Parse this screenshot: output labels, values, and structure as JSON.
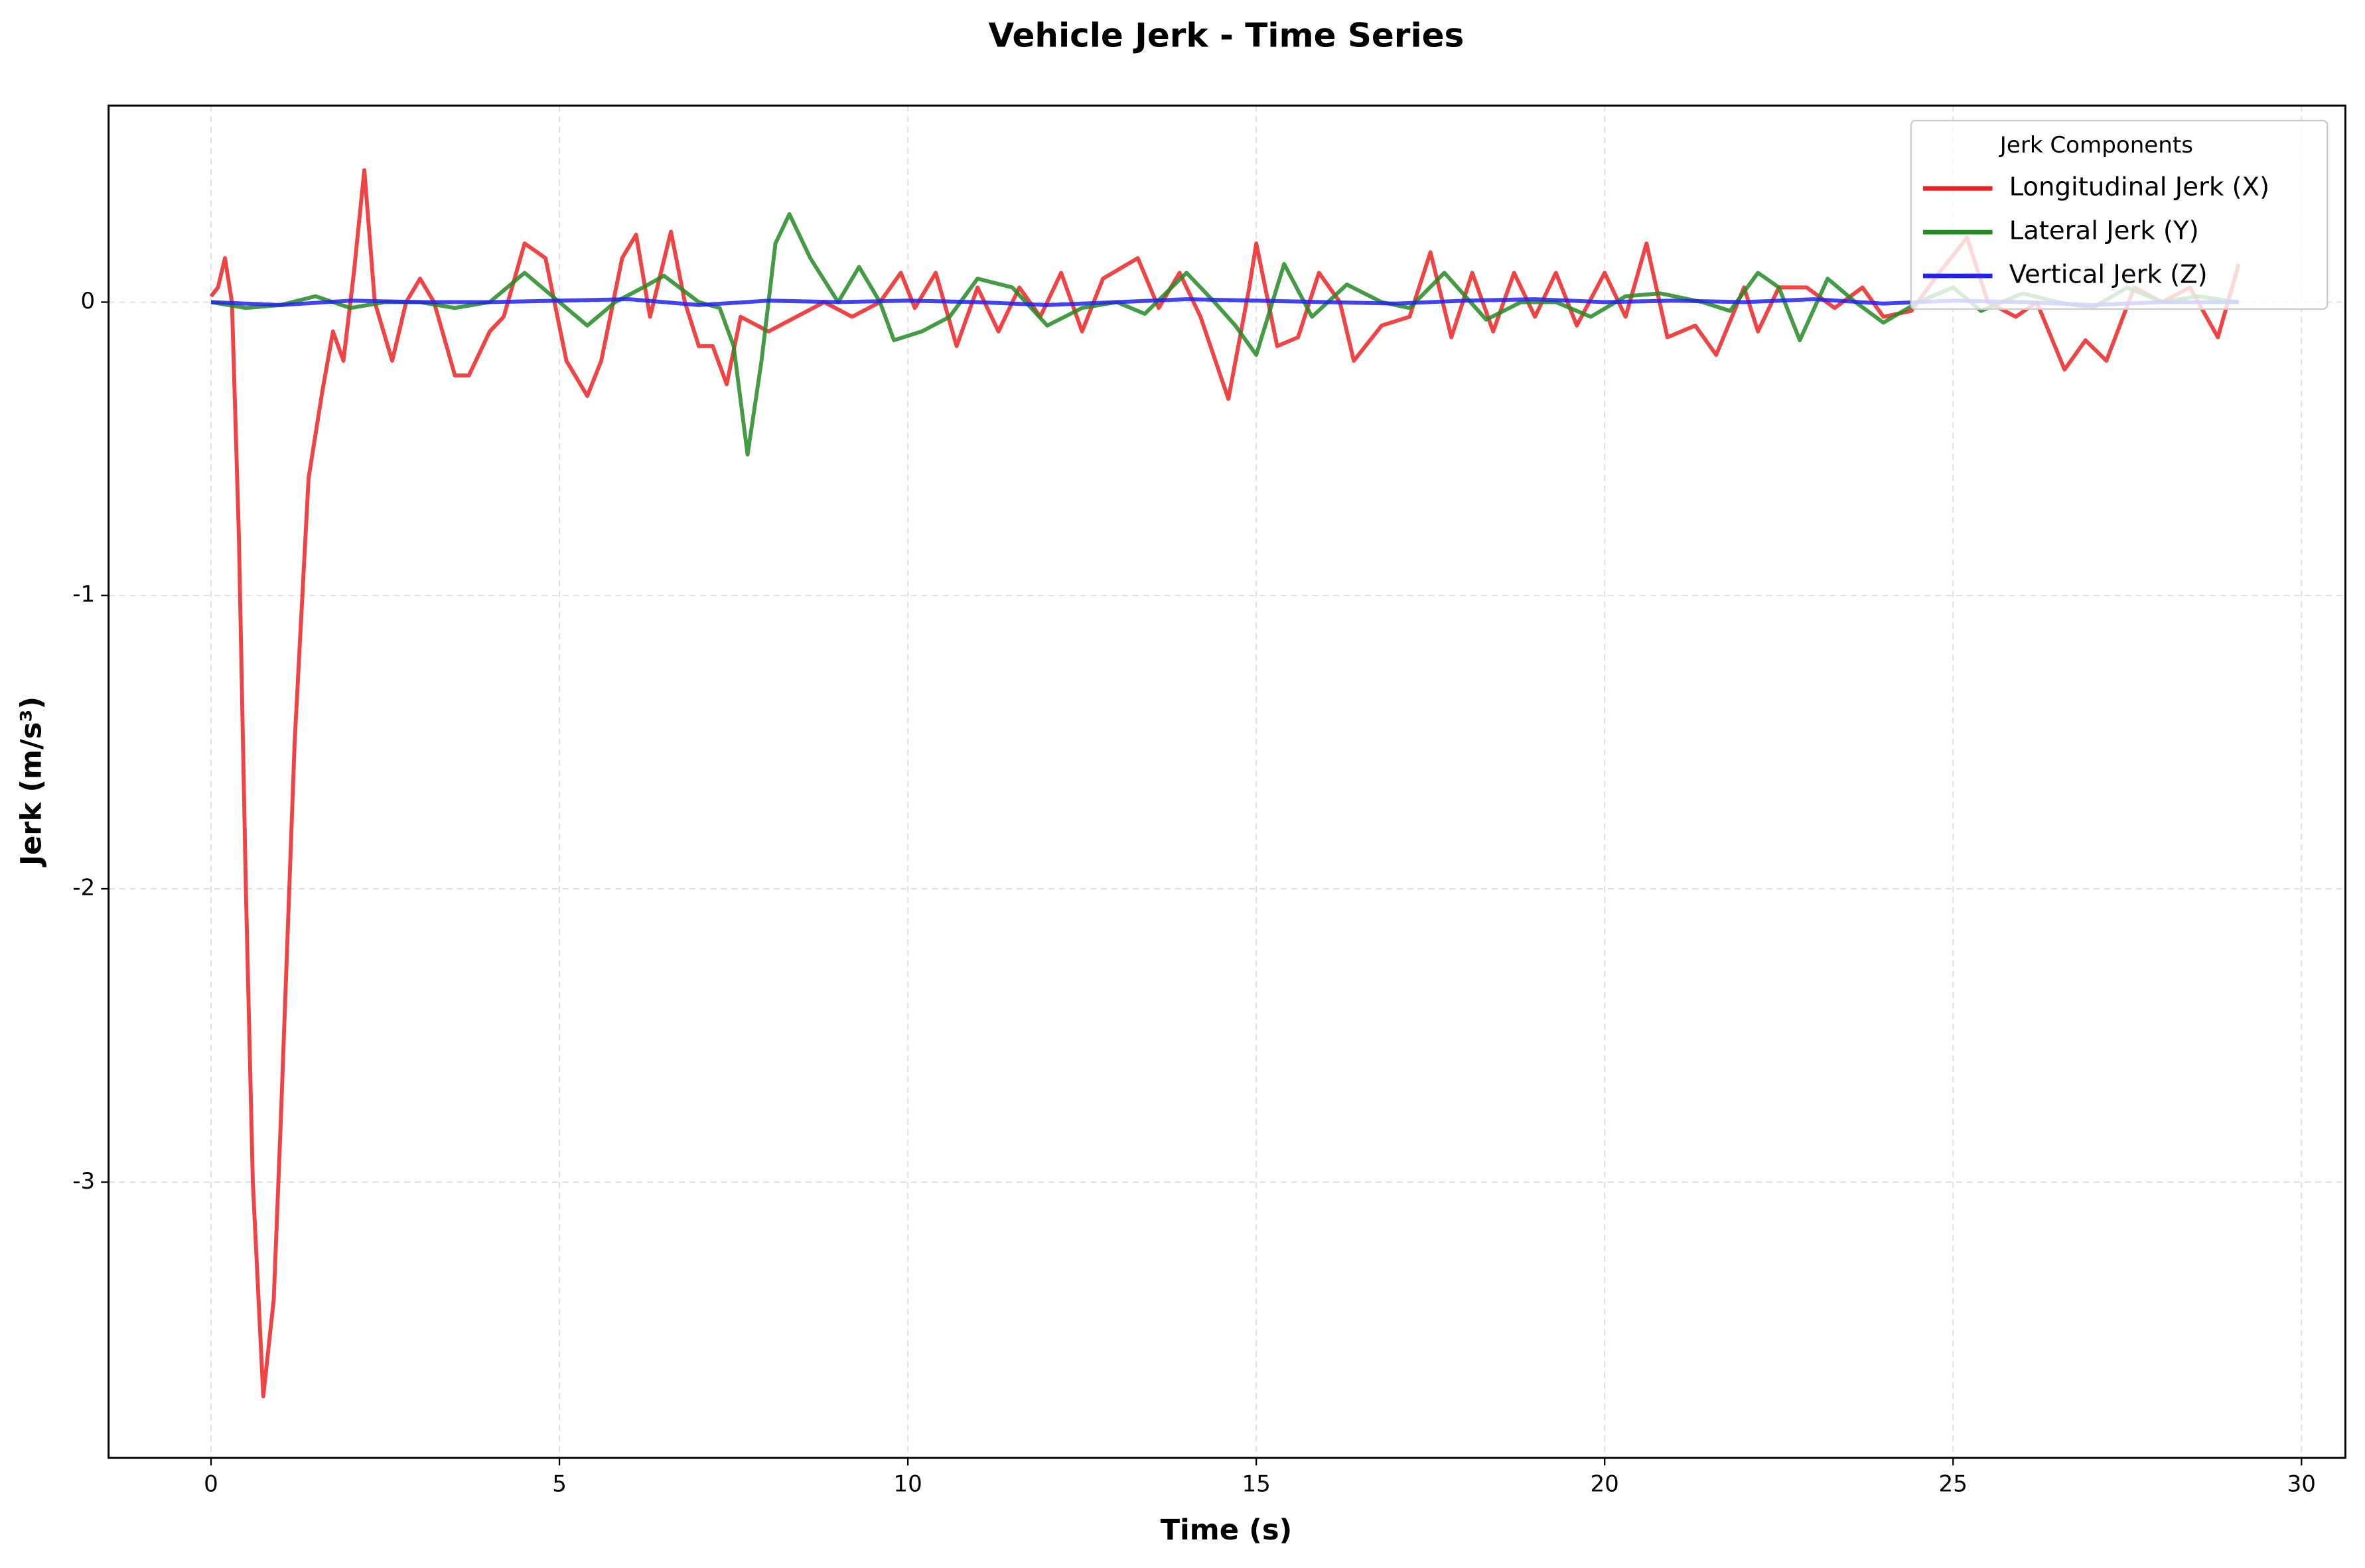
{
  "chart_data": {
    "type": "line",
    "title": "Vehicle Jerk - Time Series",
    "xlabel": "Time (s)",
    "ylabel": "Jerk (m/s³)",
    "legend_title": "Jerk Components",
    "legend": "upper right",
    "grid": true,
    "xlim": [
      -1.47,
      30.63
    ],
    "xticks": [
      0,
      5,
      10,
      15,
      20,
      25,
      30
    ],
    "ylim": [
      -3.94,
      0.67
    ],
    "yticks": [
      -3,
      -2,
      -1,
      0
    ],
    "series": [
      {
        "name": "Longitudinal Jerk (X)",
        "color": "#ee2222",
        "x": [
          0,
          0.1,
          0.2,
          0.3,
          0.4,
          0.5,
          0.6,
          0.75,
          0.9,
          1.0,
          1.2,
          1.4,
          1.6,
          1.75,
          1.9,
          2.05,
          2.2,
          2.35,
          2.6,
          2.8,
          3.0,
          3.2,
          3.5,
          3.7,
          4.0,
          4.2,
          4.5,
          4.8,
          5.1,
          5.4,
          5.6,
          5.9,
          6.1,
          6.3,
          6.6,
          6.8,
          7.0,
          7.2,
          7.4,
          7.6,
          8.0,
          8.4,
          8.8,
          9.2,
          9.6,
          9.9,
          10.1,
          10.4,
          10.7,
          11.0,
          11.3,
          11.6,
          11.9,
          12.2,
          12.5,
          12.8,
          13.3,
          13.6,
          13.9,
          14.2,
          14.6,
          14.9,
          15.0,
          15.3,
          15.6,
          15.9,
          16.2,
          16.4,
          16.8,
          17.2,
          17.5,
          17.8,
          18.1,
          18.4,
          18.7,
          19.0,
          19.3,
          19.6,
          20.0,
          20.3,
          20.6,
          20.9,
          21.3,
          21.6,
          22.0,
          22.2,
          22.5,
          22.9,
          23.3,
          23.7,
          24.0,
          24.4,
          24.8,
          25.2,
          25.5,
          25.9,
          26.2,
          26.6,
          26.9,
          27.2,
          27.6,
          28.0,
          28.4,
          28.8,
          29.1
        ],
        "values": [
          0.02,
          0.05,
          0.15,
          0.0,
          -0.8,
          -2.0,
          -3.0,
          -3.73,
          -3.4,
          -2.8,
          -1.5,
          -0.6,
          -0.3,
          -0.1,
          -0.2,
          0.1,
          0.45,
          0.0,
          -0.2,
          0.0,
          0.08,
          0.0,
          -0.25,
          -0.25,
          -0.1,
          -0.05,
          0.2,
          0.15,
          -0.2,
          -0.32,
          -0.2,
          0.15,
          0.23,
          -0.05,
          0.24,
          0.0,
          -0.15,
          -0.15,
          -0.28,
          -0.05,
          -0.1,
          -0.05,
          0.0,
          -0.05,
          0.0,
          0.1,
          -0.02,
          0.1,
          -0.15,
          0.05,
          -0.1,
          0.05,
          -0.05,
          0.1,
          -0.1,
          0.08,
          0.15,
          -0.02,
          0.1,
          -0.05,
          -0.33,
          0.05,
          0.2,
          -0.15,
          -0.12,
          0.1,
          0.0,
          -0.2,
          -0.08,
          -0.05,
          0.17,
          -0.12,
          0.1,
          -0.1,
          0.1,
          -0.05,
          0.1,
          -0.08,
          0.1,
          -0.05,
          0.2,
          -0.12,
          -0.08,
          -0.18,
          0.05,
          -0.1,
          0.05,
          0.05,
          -0.02,
          0.05,
          -0.05,
          -0.03,
          0.1,
          0.22,
          0.0,
          -0.05,
          0.0,
          -0.23,
          -0.13,
          -0.2,
          0.05,
          0.0,
          0.05,
          -0.12,
          0.13
        ]
      },
      {
        "name": "Lateral Jerk (Y)",
        "color": "#228b22",
        "x": [
          0,
          0.5,
          1.0,
          1.5,
          2.0,
          2.5,
          3.0,
          3.5,
          4.0,
          4.5,
          5.0,
          5.4,
          5.8,
          6.2,
          6.5,
          7.0,
          7.3,
          7.5,
          7.7,
          7.9,
          8.1,
          8.3,
          8.6,
          9.0,
          9.3,
          9.6,
          9.8,
          10.2,
          10.6,
          11.0,
          11.5,
          12.0,
          12.5,
          13.0,
          13.4,
          14.0,
          14.4,
          14.7,
          15.0,
          15.4,
          15.8,
          16.3,
          16.8,
          17.2,
          17.7,
          18.3,
          18.8,
          19.3,
          19.8,
          20.3,
          20.8,
          21.4,
          21.8,
          22.2,
          22.5,
          22.8,
          23.2,
          23.6,
          24.0,
          24.5,
          25.0,
          25.4,
          26.0,
          26.5,
          27.0,
          27.5,
          28.0,
          28.5,
          29.1
        ],
        "values": [
          0,
          -0.02,
          -0.01,
          0.02,
          -0.02,
          0.0,
          0.0,
          -0.02,
          0.0,
          0.1,
          0.0,
          -0.08,
          0.0,
          0.05,
          0.09,
          0.0,
          -0.02,
          -0.15,
          -0.52,
          -0.2,
          0.2,
          0.3,
          0.15,
          0.0,
          0.12,
          0.0,
          -0.13,
          -0.1,
          -0.05,
          0.08,
          0.05,
          -0.08,
          -0.02,
          0.0,
          -0.04,
          0.1,
          0.0,
          -0.08,
          -0.18,
          0.13,
          -0.05,
          0.06,
          0.0,
          -0.02,
          0.1,
          -0.06,
          0.0,
          0.0,
          -0.05,
          0.02,
          0.03,
          0.0,
          -0.03,
          0.1,
          0.05,
          -0.13,
          0.08,
          0.0,
          -0.07,
          0.0,
          0.05,
          -0.03,
          0.03,
          0.0,
          -0.02,
          0.05,
          0.0,
          0.02,
          0.0
        ]
      },
      {
        "name": "Vertical Jerk (Z)",
        "color": "#2222ee",
        "x": [
          0,
          1,
          2,
          3,
          4,
          5,
          6,
          7,
          8,
          9,
          10,
          11,
          12,
          13,
          14,
          15,
          16,
          17,
          18,
          19,
          20,
          21,
          22,
          23,
          24,
          25,
          26,
          27,
          28,
          29.1
        ],
        "values": [
          0,
          -0.01,
          0.005,
          0.0,
          0.0,
          0.005,
          0.01,
          -0.01,
          0.005,
          0.0,
          0.005,
          0.0,
          -0.01,
          0.0,
          0.01,
          0.005,
          0.0,
          -0.005,
          0.005,
          0.01,
          0.0,
          0.005,
          0.0,
          0.01,
          -0.005,
          0.005,
          0.0,
          -0.01,
          0.0,
          0.0
        ]
      }
    ]
  }
}
